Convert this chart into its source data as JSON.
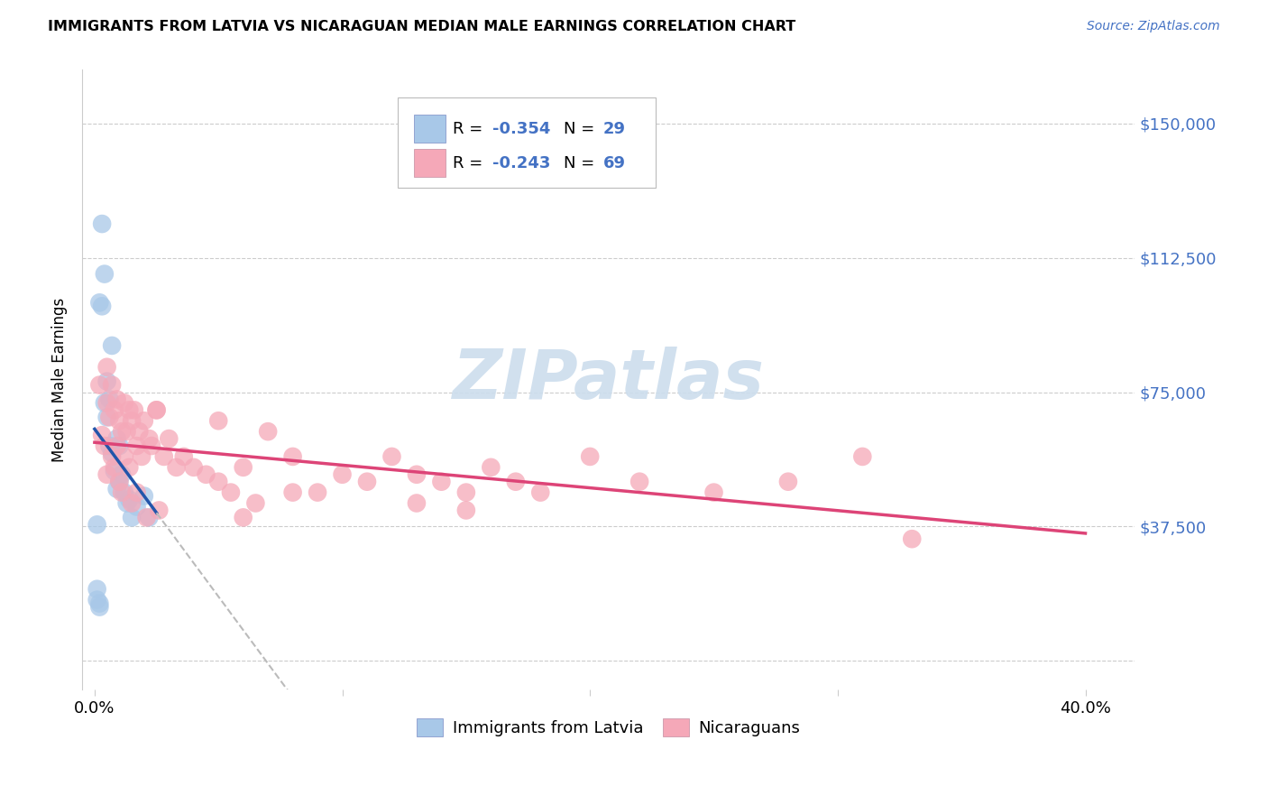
{
  "title": "IMMIGRANTS FROM LATVIA VS NICARAGUAN MEDIAN MALE EARNINGS CORRELATION CHART",
  "source": "Source: ZipAtlas.com",
  "ylabel": "Median Male Earnings",
  "yticks": [
    0,
    37500,
    75000,
    112500,
    150000
  ],
  "ytick_labels_right": [
    "",
    "$37,500",
    "$75,000",
    "$112,500",
    "$150,000"
  ],
  "xlim": [
    -0.005,
    0.42
  ],
  "ylim": [
    -8000,
    165000
  ],
  "legend_label_blue": "Immigrants from Latvia",
  "legend_label_pink": "Nicaraguans",
  "blue_color": "#a8c8e8",
  "pink_color": "#f5a8b8",
  "line_blue_color": "#2255aa",
  "line_pink_color": "#dd4477",
  "dash_color": "#bbbbbb",
  "watermark_color": "#ccdded",
  "grid_color": "#cccccc",
  "right_tick_color": "#4472c4",
  "title_fontsize": 11.5,
  "source_fontsize": 10,
  "legend_r_blue": "-0.354",
  "legend_n_blue": "29",
  "legend_r_pink": "-0.243",
  "legend_n_pink": "69",
  "blue_x": [
    0.001,
    0.001,
    0.002,
    0.002,
    0.003,
    0.004,
    0.005,
    0.005,
    0.006,
    0.006,
    0.007,
    0.007,
    0.008,
    0.009,
    0.009,
    0.01,
    0.01,
    0.011,
    0.012,
    0.013,
    0.014,
    0.015,
    0.017,
    0.02,
    0.022,
    0.003,
    0.004,
    0.001,
    0.002
  ],
  "blue_y": [
    17000,
    20000,
    100000,
    16000,
    122000,
    108000,
    78000,
    68000,
    73000,
    60000,
    58000,
    88000,
    53000,
    62000,
    48000,
    50000,
    60000,
    52000,
    47000,
    44000,
    45000,
    40000,
    43000,
    46000,
    40000,
    99000,
    72000,
    38000,
    15000
  ],
  "pink_x": [
    0.002,
    0.003,
    0.004,
    0.005,
    0.005,
    0.006,
    0.007,
    0.007,
    0.008,
    0.008,
    0.009,
    0.009,
    0.01,
    0.01,
    0.011,
    0.011,
    0.012,
    0.012,
    0.013,
    0.014,
    0.014,
    0.015,
    0.015,
    0.016,
    0.017,
    0.017,
    0.018,
    0.019,
    0.02,
    0.021,
    0.022,
    0.023,
    0.025,
    0.026,
    0.028,
    0.03,
    0.033,
    0.036,
    0.04,
    0.045,
    0.05,
    0.055,
    0.06,
    0.065,
    0.07,
    0.08,
    0.09,
    0.1,
    0.11,
    0.12,
    0.13,
    0.14,
    0.15,
    0.16,
    0.17,
    0.18,
    0.2,
    0.22,
    0.25,
    0.28,
    0.31,
    0.33,
    0.005,
    0.025,
    0.06,
    0.08,
    0.05,
    0.13,
    0.15
  ],
  "pink_y": [
    77000,
    63000,
    60000,
    82000,
    72000,
    68000,
    77000,
    57000,
    70000,
    54000,
    73000,
    60000,
    67000,
    50000,
    64000,
    47000,
    72000,
    57000,
    64000,
    70000,
    54000,
    67000,
    44000,
    70000,
    60000,
    47000,
    64000,
    57000,
    67000,
    40000,
    62000,
    60000,
    70000,
    42000,
    57000,
    62000,
    54000,
    57000,
    54000,
    52000,
    50000,
    47000,
    54000,
    44000,
    64000,
    57000,
    47000,
    52000,
    50000,
    57000,
    44000,
    50000,
    47000,
    54000,
    50000,
    47000,
    57000,
    50000,
    47000,
    50000,
    57000,
    34000,
    52000,
    70000,
    40000,
    47000,
    67000,
    52000,
    42000
  ]
}
